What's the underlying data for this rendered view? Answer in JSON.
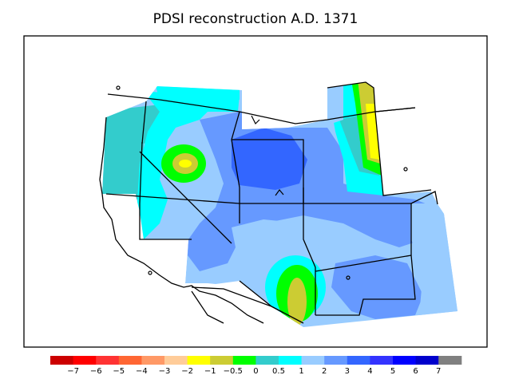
{
  "title": "PDSI reconstruction A.D. 1371",
  "legend": {
    "colors": [
      "#cc0000",
      "#ff0000",
      "#ff3333",
      "#ff6633",
      "#ff9966",
      "#ffcc99",
      "#ffff00",
      "#cccc33",
      "#00ff00",
      "#33cccc",
      "#00ffff",
      "#99ccff",
      "#6699ff",
      "#3366ff",
      "#3333ff",
      "#0000ff",
      "#0000cc",
      "#808080"
    ],
    "labels": [
      "−7",
      "−6",
      "−5",
      "−4",
      "−3",
      "−2",
      "−1",
      "−0.5",
      "0",
      "0.5",
      "1",
      "2",
      "3",
      "4",
      "5",
      "6",
      "7"
    ]
  },
  "colors": {
    "frame": "#000000",
    "background": "#ffffff",
    "region_base": "#99ccff",
    "teal": "#33cccc",
    "cyan": "#00ffff",
    "green": "#00ff00",
    "olive": "#cccc33",
    "yellow": "#ffff00",
    "blue3": "#6699ff",
    "blue4": "#3366ff"
  }
}
